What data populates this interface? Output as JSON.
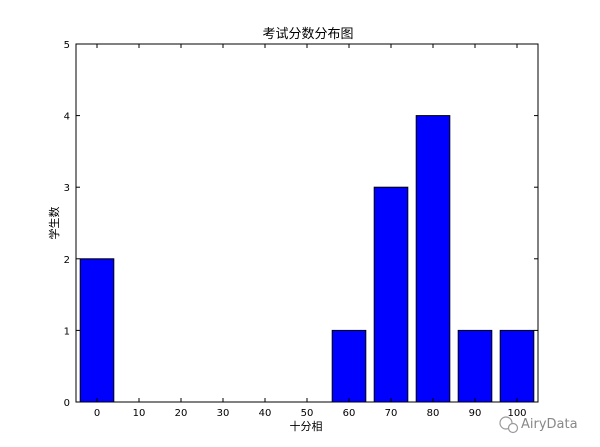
{
  "chart_data": {
    "type": "bar",
    "title": "考试分数分布图",
    "xlabel": "十分相",
    "ylabel": "学生数",
    "categories": [
      "0",
      "10",
      "20",
      "30",
      "40",
      "50",
      "60",
      "70",
      "80",
      "90",
      "100"
    ],
    "values": [
      2,
      0,
      0,
      0,
      0,
      0,
      1,
      3,
      4,
      1,
      1
    ],
    "ylim": [
      0,
      5
    ],
    "yticks": [
      "0",
      "1",
      "2",
      "3",
      "4",
      "5"
    ],
    "bar_color": "#0000ff",
    "grid": false
  },
  "watermark": {
    "text": "AiryData",
    "icon": "wechat-logo"
  }
}
